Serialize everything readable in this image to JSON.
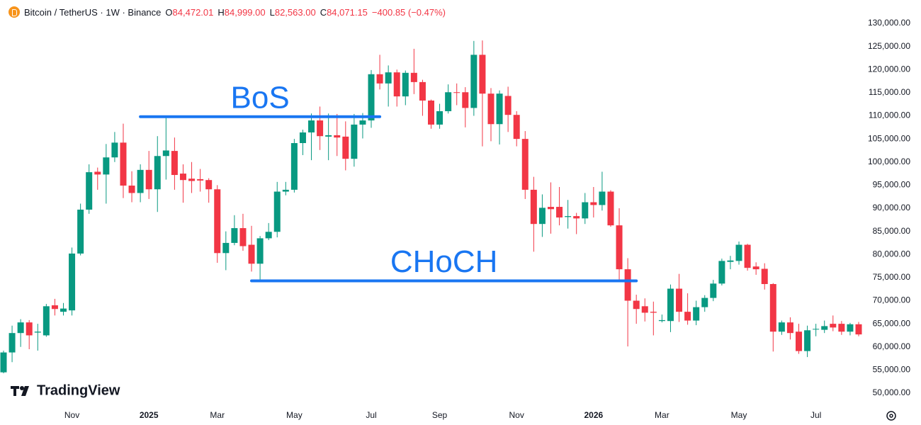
{
  "chart_data": {
    "type": "candlestick",
    "title": "Bitcoin / TetherUS · 1W · Binance",
    "ohlc": [
      {
        "key": "O",
        "text": "84,472.01"
      },
      {
        "key": "H",
        "text": "84,999.00"
      },
      {
        "key": "L",
        "text": "82,563.00"
      },
      {
        "key": "C",
        "text": "84,071.15"
      }
    ],
    "change": "−400.85 (−0.47%)",
    "watermark": "TradingView",
    "up_color": "#089981",
    "down_color": "#f23645",
    "categories": [
      null,
      null,
      null,
      null,
      null,
      null,
      null,
      null,
      "Nov",
      null,
      null,
      null,
      null,
      null,
      null,
      null,
      null,
      "2025",
      null,
      null,
      null,
      null,
      null,
      null,
      null,
      "Mar",
      null,
      null,
      null,
      null,
      null,
      null,
      null,
      null,
      "May",
      null,
      null,
      null,
      null,
      null,
      null,
      null,
      null,
      "Jul",
      null,
      null,
      null,
      null,
      null,
      null,
      null,
      "Sep",
      null,
      null,
      null,
      null,
      null,
      null,
      null,
      null,
      "Nov",
      null,
      null,
      null,
      null,
      null,
      null,
      null,
      null,
      "2026",
      null,
      null,
      null,
      null,
      null,
      null,
      null,
      "Mar",
      null,
      null,
      null,
      null,
      null,
      null,
      null,
      null,
      "May",
      null,
      null,
      null,
      null,
      null,
      null,
      null,
      null,
      "Jul",
      null,
      null,
      null,
      null,
      null
    ],
    "open": [
      54500,
      58800,
      63000,
      65300,
      63100,
      62500,
      69000,
      67600,
      67900,
      80200,
      89700,
      97900,
      97300,
      101000,
      104200,
      94900,
      93300,
      98300,
      94100,
      101300,
      102400,
      97500,
      96400,
      96300,
      96100,
      94100,
      80300,
      82500,
      85700,
      82100,
      78000,
      83500,
      84900,
      93600,
      94000,
      104100,
      106400,
      109000,
      105500,
      105800,
      105500,
      100700,
      108100,
      109000,
      119000,
      117000,
      119400,
      114200,
      119300,
      117300,
      113300,
      108100,
      111000,
      115100,
      115100,
      111700,
      123200,
      114800,
      108200,
      114300,
      110200,
      105000,
      94000,
      86600,
      90300,
      90300,
      88100,
      88300,
      87800,
      91300,
      90700,
      93600,
      86300,
      76800,
      70000,
      68800,
      67600,
      65600,
      65600,
      72600,
      67600,
      65700,
      68600,
      70600,
      73700,
      78400,
      78600,
      82100,
      77400,
      76900,
      73600,
      63300,
      65300,
      63300,
      59100,
      63800,
      63700,
      65000,
      65000,
      63300,
      64900
    ],
    "high": [
      59200,
      64600,
      66000,
      65800,
      65000,
      69300,
      70400,
      69500,
      81500,
      91000,
      99500,
      98800,
      103900,
      106500,
      108300,
      98000,
      99500,
      102400,
      105600,
      109600,
      105300,
      99500,
      100000,
      98500,
      96500,
      95000,
      85000,
      88500,
      88800,
      86200,
      84000,
      86800,
      95700,
      95700,
      105000,
      107000,
      110500,
      112000,
      110500,
      110400,
      108800,
      110400,
      110600,
      119900,
      123200,
      120900,
      120000,
      119800,
      124500,
      117800,
      113500,
      112600,
      116800,
      117000,
      116200,
      126200,
      126300,
      116000,
      115500,
      116300,
      111000,
      106700,
      96800,
      93000,
      95600,
      94600,
      91800,
      89000,
      93300,
      94600,
      97900,
      93900,
      90000,
      79200,
      71300,
      70500,
      69800,
      67000,
      73500,
      75800,
      71600,
      70000,
      71200,
      74500,
      79100,
      79700,
      82800,
      82300,
      78300,
      78100,
      73800,
      65700,
      66400,
      65000,
      64600,
      65000,
      65700,
      66800,
      65600,
      65200,
      65400
    ],
    "low": [
      54300,
      56700,
      60000,
      59500,
      59200,
      62200,
      66800,
      66800,
      66800,
      79800,
      88800,
      94000,
      91000,
      100000,
      92200,
      91300,
      91300,
      92000,
      89200,
      96200,
      94000,
      91200,
      93300,
      93600,
      91200,
      78200,
      76600,
      82000,
      80800,
      76300,
      74600,
      83100,
      83700,
      92800,
      93400,
      101500,
      100400,
      102600,
      100400,
      101300,
      98200,
      99000,
      105100,
      107400,
      115700,
      112000,
      112000,
      112300,
      114700,
      110000,
      107200,
      107200,
      110500,
      112300,
      107500,
      110000,
      103400,
      104500,
      103800,
      106500,
      103400,
      92000,
      80600,
      83800,
      84500,
      86300,
      85600,
      84400,
      86600,
      88000,
      89500,
      86000,
      74600,
      60100,
      65000,
      65500,
      62500,
      65300,
      63200,
      65400,
      64800,
      64700,
      67600,
      69900,
      73300,
      76800,
      77800,
      76500,
      75600,
      72400,
      59000,
      62600,
      61600,
      58500,
      57800,
      62300,
      63000,
      63400,
      62600,
      62500,
      62300
    ],
    "close": [
      58800,
      63000,
      65300,
      62500,
      63300,
      68800,
      68200,
      68300,
      80200,
      89700,
      97800,
      97300,
      101000,
      104200,
      94900,
      93300,
      98300,
      94100,
      101300,
      102500,
      97200,
      96100,
      95900,
      96000,
      94100,
      80300,
      82500,
      85700,
      81800,
      78000,
      83500,
      84900,
      93600,
      94000,
      104100,
      106400,
      109000,
      105600,
      105800,
      105300,
      100700,
      108100,
      109000,
      119000,
      117000,
      119400,
      114200,
      119300,
      117300,
      113300,
      108100,
      111000,
      115100,
      115000,
      111700,
      123200,
      114800,
      108200,
      114800,
      110200,
      105000,
      94000,
      86600,
      90100,
      89800,
      88000,
      88300,
      87800,
      91300,
      90700,
      93600,
      86300,
      76800,
      70000,
      68200,
      67400,
      67400,
      65800,
      72600,
      67600,
      65700,
      68600,
      70600,
      73700,
      78600,
      78700,
      82100,
      77100,
      76800,
      73600,
      63300,
      65300,
      63000,
      59100,
      63600,
      63900,
      64500,
      64200,
      63300,
      64900,
      62700
    ],
    "ylim": [
      50000,
      130000
    ],
    "yticks": [
      {
        "value": 50000,
        "label": "50,000.00"
      },
      {
        "value": 55000,
        "label": "55,000.00"
      },
      {
        "value": 60000,
        "label": "60,000.00"
      },
      {
        "value": 65000,
        "label": "65,000.00"
      },
      {
        "value": 70000,
        "label": "70,000.00"
      },
      {
        "value": 75000,
        "label": "75,000.00"
      },
      {
        "value": 80000,
        "label": "80,000.00"
      },
      {
        "value": 85000,
        "label": "85,000.00"
      },
      {
        "value": 90000,
        "label": "90,000.00"
      },
      {
        "value": 95000,
        "label": "95,000.00"
      },
      {
        "value": 100000,
        "label": "100,000.00"
      },
      {
        "value": 105000,
        "label": "105,000.00"
      },
      {
        "value": 110000,
        "label": "110,000.00"
      },
      {
        "value": 115000,
        "label": "115,000.00"
      },
      {
        "value": 120000,
        "label": "120,000.00"
      },
      {
        "value": 125000,
        "label": "125,000.00"
      },
      {
        "value": 130000,
        "label": "130,000.00"
      }
    ],
    "annotations": [
      {
        "text": "BoS",
        "level": 109800,
        "start": 16,
        "end": 44,
        "color": "#1976f2"
      },
      {
        "text": "CHoCH",
        "level": 74300,
        "start": 29,
        "end": 74,
        "color": "#1976f2"
      }
    ]
  }
}
